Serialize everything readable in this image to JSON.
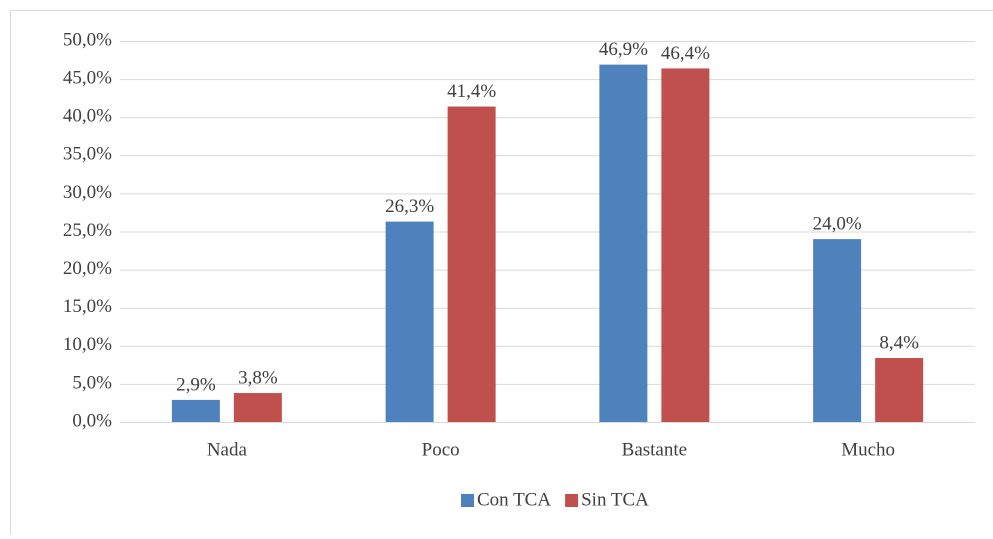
{
  "chart_data": {
    "type": "bar",
    "categories": [
      "Nada",
      "Poco",
      "Bastante",
      "Mucho"
    ],
    "series": [
      {
        "name": "Con TCA",
        "color": "#4f81bd",
        "values": [
          2.9,
          26.3,
          46.9,
          24.0
        ],
        "value_labels": [
          "2,9%",
          "26,3%",
          "46,9%",
          "24,0%"
        ]
      },
      {
        "name": "Sin TCA",
        "color": "#c0504d",
        "values": [
          3.8,
          41.4,
          46.4,
          8.4
        ],
        "value_labels": [
          "3,8%",
          "41,4%",
          "46,4%",
          "8,4%"
        ]
      }
    ],
    "ylim": [
      0,
      50
    ],
    "yticks": [
      {
        "value": 0,
        "label": "0,0%"
      },
      {
        "value": 5,
        "label": "5,0%"
      },
      {
        "value": 10,
        "label": "10,0%"
      },
      {
        "value": 15,
        "label": "15,0%"
      },
      {
        "value": 20,
        "label": "20,0%"
      },
      {
        "value": 25,
        "label": "25,0%"
      },
      {
        "value": 30,
        "label": "30,0%"
      },
      {
        "value": 35,
        "label": "35,0%"
      },
      {
        "value": 40,
        "label": "40,0%"
      },
      {
        "value": 45,
        "label": "45,0%"
      },
      {
        "value": 50,
        "label": "50,0%"
      }
    ],
    "grid": true,
    "legend": "bottom"
  }
}
